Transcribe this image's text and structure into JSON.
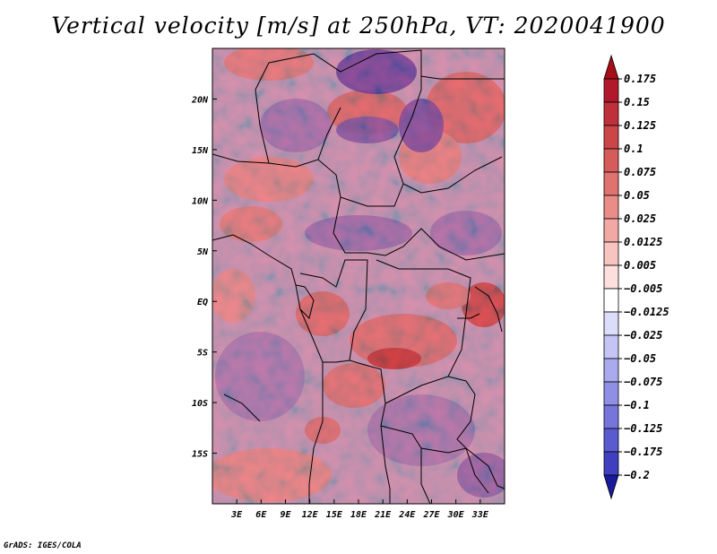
{
  "title": "Vertical velocity [m/s] at 250hPa, VT: 2020041900",
  "credit": "GrADS: IGES/COLA",
  "map": {
    "lon_range": [
      0,
      36
    ],
    "lat_range": [
      -20,
      25
    ],
    "lon_ticks": [
      {
        "value": 3,
        "label": "3E"
      },
      {
        "value": 6,
        "label": "6E"
      },
      {
        "value": 9,
        "label": "9E"
      },
      {
        "value": 12,
        "label": "12E"
      },
      {
        "value": 15,
        "label": "15E"
      },
      {
        "value": 18,
        "label": "18E"
      },
      {
        "value": 21,
        "label": "21E"
      },
      {
        "value": 24,
        "label": "24E"
      },
      {
        "value": 27,
        "label": "27E"
      },
      {
        "value": 30,
        "label": "30E"
      },
      {
        "value": 33,
        "label": "33E"
      }
    ],
    "lat_ticks": [
      {
        "value": 20,
        "label": "20N"
      },
      {
        "value": 15,
        "label": "15N"
      },
      {
        "value": 10,
        "label": "10N"
      },
      {
        "value": 5,
        "label": "5N"
      },
      {
        "value": 0,
        "label": "EQ"
      },
      {
        "value": -5,
        "label": "5S"
      },
      {
        "value": -10,
        "label": "10S"
      },
      {
        "value": -15,
        "label": "15S"
      }
    ]
  },
  "colorbar": {
    "levels": [
      {
        "label": "0.175",
        "color": "#b2182b"
      },
      {
        "label": "0.15",
        "color": "#c0303a"
      },
      {
        "label": "0.125",
        "color": "#cc4549"
      },
      {
        "label": "0.1",
        "color": "#d65b5b"
      },
      {
        "label": "0.075",
        "color": "#e0726f"
      },
      {
        "label": "0.05",
        "color": "#ea8c88"
      },
      {
        "label": "0.025",
        "color": "#f2a8a3"
      },
      {
        "label": "0.0125",
        "color": "#f8c4c0"
      },
      {
        "label": "0.005",
        "color": "#fde0dd"
      },
      {
        "label": "−0.005",
        "color": "#ffffff"
      },
      {
        "label": "−0.0125",
        "color": "#dcdcfb"
      },
      {
        "label": "−0.025",
        "color": "#c4c4f5"
      },
      {
        "label": "−0.05",
        "color": "#aaaaee"
      },
      {
        "label": "−0.075",
        "color": "#8f8fe6"
      },
      {
        "label": "−0.1",
        "color": "#7575dc"
      },
      {
        "label": "−0.125",
        "color": "#5b5bd0"
      },
      {
        "label": "−0.175",
        "color": "#3f3fc0"
      },
      {
        "label": "−0.2",
        "color": "#2626ad"
      }
    ],
    "top_cap_color": "#a50f15",
    "bottom_cap_color": "#1a1a9c"
  }
}
